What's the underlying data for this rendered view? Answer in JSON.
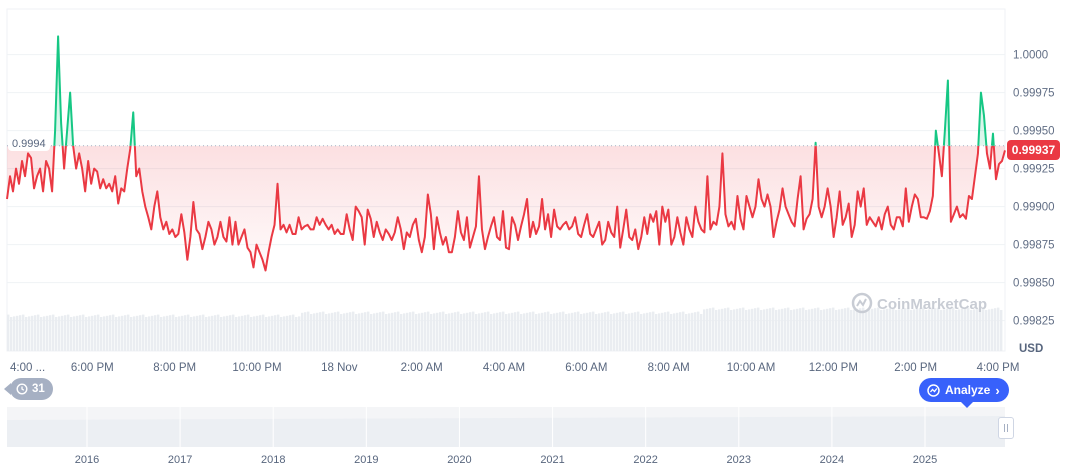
{
  "chart_data": {
    "type": "line",
    "ylim": [
      0.99805,
      1.0003
    ],
    "yticks": [
      "1.0000",
      "0.99975",
      "0.99950",
      "0.99925",
      "0.99900",
      "0.99875",
      "0.99850",
      "0.99825"
    ],
    "ytick_values": [
      1.0,
      0.99975,
      0.9995,
      0.99925,
      0.999,
      0.99875,
      0.9985,
      0.99825
    ],
    "y_unit": "USD",
    "xticks": [
      "4:00 ...",
      "6:00 PM",
      "8:00 PM",
      "10:00 PM",
      "18 Nov",
      "2:00 AM",
      "4:00 AM",
      "6:00 AM",
      "8:00 AM",
      "10:00 AM",
      "12:00 PM",
      "2:00 PM",
      "4:00 PM"
    ],
    "reference_price": 0.9994,
    "reference_label": "0.9994",
    "current_price": 0.99937,
    "current_label": "0.99937",
    "up_color": "#16c784",
    "down_color": "#ea3943",
    "series": [
      {
        "values": [
          0.99905,
          0.9992,
          0.9991,
          0.99925,
          0.99915,
          0.9993,
          0.9992,
          0.99935,
          0.99932,
          0.99912,
          0.9992,
          0.99925,
          0.9991,
          0.9993,
          0.99925,
          0.9991,
          0.9995,
          1.00012,
          0.99955,
          0.99925,
          0.9995,
          0.99975,
          0.9994,
          0.99925,
          0.99935,
          0.99925,
          0.9991,
          0.9993,
          0.99915,
          0.99925,
          0.99923,
          0.99912,
          0.99918,
          0.99912,
          0.99915,
          0.9991,
          0.9992,
          0.99902,
          0.99912,
          0.9991,
          0.99925,
          0.99938,
          0.99962,
          0.9992,
          0.99925,
          0.9991,
          0.999,
          0.99893,
          0.99885,
          0.999,
          0.9991,
          0.99893,
          0.99885,
          0.9989,
          0.99882,
          0.99885,
          0.9988,
          0.99882,
          0.99895,
          0.99883,
          0.99865,
          0.9988,
          0.99903,
          0.99885,
          0.99882,
          0.99872,
          0.9988,
          0.9989,
          0.99885,
          0.99875,
          0.9988,
          0.9989,
          0.9988,
          0.99877,
          0.99893,
          0.99875,
          0.9989,
          0.99875,
          0.9988,
          0.99885,
          0.99873,
          0.9987,
          0.9986,
          0.99875,
          0.9987,
          0.99865,
          0.99858,
          0.9987,
          0.9988,
          0.99888,
          0.99915,
          0.99885,
          0.99888,
          0.99883,
          0.99888,
          0.99882,
          0.99882,
          0.99893,
          0.99885,
          0.99887,
          0.99888,
          0.99885,
          0.99885,
          0.99893,
          0.99888,
          0.99892,
          0.99888,
          0.99885,
          0.99888,
          0.99882,
          0.99885,
          0.99882,
          0.99882,
          0.99895,
          0.99885,
          0.99878,
          0.999,
          0.99897,
          0.99893,
          0.99875,
          0.99898,
          0.99892,
          0.9988,
          0.9989,
          0.99883,
          0.99878,
          0.99885,
          0.99882,
          0.99878,
          0.99883,
          0.99893,
          0.99885,
          0.99872,
          0.99883,
          0.9988,
          0.99888,
          0.99892,
          0.99878,
          0.9987,
          0.9988,
          0.99908,
          0.99895,
          0.99872,
          0.99893,
          0.99883,
          0.99875,
          0.9988,
          0.9987,
          0.9987,
          0.9988,
          0.99897,
          0.99883,
          0.99878,
          0.99893,
          0.99873,
          0.9988,
          0.99887,
          0.9992,
          0.99885,
          0.99872,
          0.9988,
          0.99887,
          0.99893,
          0.9988,
          0.99878,
          0.99897,
          0.99873,
          0.99872,
          0.99893,
          0.99888,
          0.99878,
          0.99887,
          0.99895,
          0.99905,
          0.9988,
          0.9989,
          0.99882,
          0.99887,
          0.99905,
          0.99885,
          0.99895,
          0.9988,
          0.99898,
          0.99887,
          0.99885,
          0.99888,
          0.9989,
          0.99885,
          0.99887,
          0.99893,
          0.99882,
          0.9988,
          0.99888,
          0.99895,
          0.99882,
          0.9988,
          0.99885,
          0.9989,
          0.99875,
          0.99878,
          0.9989,
          0.99883,
          0.9988,
          0.999,
          0.99873,
          0.99885,
          0.99898,
          0.9988,
          0.99878,
          0.99885,
          0.99872,
          0.9988,
          0.99893,
          0.99882,
          0.99895,
          0.9989,
          0.99897,
          0.99875,
          0.999,
          0.9989,
          0.99898,
          0.99875,
          0.9988,
          0.99893,
          0.99883,
          0.99875,
          0.99893,
          0.99885,
          0.9988,
          0.999,
          0.9989,
          0.99885,
          0.99883,
          0.9992,
          0.99885,
          0.9989,
          0.99888,
          0.999,
          0.99935,
          0.99895,
          0.99887,
          0.9989,
          0.99885,
          0.99907,
          0.99892,
          0.99885,
          0.99907,
          0.999,
          0.99893,
          0.999,
          0.99918,
          0.99905,
          0.999,
          0.99908,
          0.999,
          0.9988,
          0.9989,
          0.99898,
          0.99912,
          0.999,
          0.99895,
          0.9989,
          0.99887,
          0.99905,
          0.9992,
          0.99885,
          0.99892,
          0.99895,
          0.99905,
          0.99942,
          0.999,
          0.99893,
          0.999,
          0.99912,
          0.999,
          0.9988,
          0.99893,
          0.9991,
          0.99888,
          0.99893,
          0.99902,
          0.9988,
          0.99888,
          0.9991,
          0.999,
          0.99912,
          0.99888,
          0.99893,
          0.9989,
          0.99887,
          0.99893,
          0.99885,
          0.99895,
          0.999,
          0.99888,
          0.99885,
          0.99893,
          0.99893,
          0.99887,
          0.99912,
          0.9989,
          0.999,
          0.99908,
          0.99905,
          0.99893,
          0.99893,
          0.99892,
          0.99897,
          0.99907,
          0.9995,
          0.99935,
          0.9992,
          0.9995,
          0.99983,
          0.9989,
          0.99895,
          0.999,
          0.99893,
          0.99895,
          0.99892,
          0.99907,
          0.99905,
          0.9992,
          0.99935,
          0.99975,
          0.9996,
          0.99935,
          0.99925,
          0.99948,
          0.99918,
          0.99928,
          0.9993,
          0.99937
        ]
      }
    ]
  },
  "labels": {
    "usd": "USD",
    "watermark": "CoinMarketCap"
  },
  "navigator": {
    "years": [
      "2016",
      "2017",
      "2018",
      "2019",
      "2020",
      "2021",
      "2022",
      "2023",
      "2024",
      "2025"
    ]
  },
  "history_chip": {
    "count": "31"
  },
  "analyze_button": {
    "label": "Analyze"
  }
}
